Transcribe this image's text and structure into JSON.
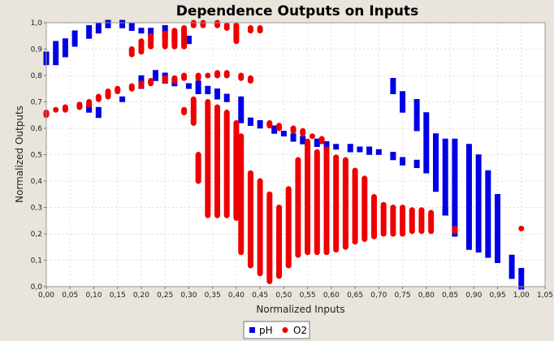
{
  "chart_data": {
    "type": "scatter",
    "title": "Dependence Outputs on Inputs",
    "xlabel": "Normalized Inputs",
    "ylabel": "Normalized Outputs",
    "xlim": [
      0,
      1.05
    ],
    "ylim": [
      0,
      1.0
    ],
    "x_ticks": [
      "0,00",
      "0,05",
      "0,10",
      "0,15",
      "0,20",
      "0,25",
      "0,30",
      "0,35",
      "0,40",
      "0,45",
      "0,50",
      "0,55",
      "0,60",
      "0,65",
      "0,70",
      "0,75",
      "0,80",
      "0,85",
      "0,90",
      "0,95",
      "1,00",
      "1,05"
    ],
    "y_ticks": [
      "0,0",
      "0,1",
      "0,2",
      "0,3",
      "0,4",
      "0,5",
      "0,6",
      "0,7",
      "0,8",
      "0,9",
      "1,0"
    ],
    "grid": true,
    "legend_position": "bottom-center",
    "series": [
      {
        "name": "pH",
        "color": "#0000e6",
        "marker": "square",
        "segments": [
          {
            "x": 0.0,
            "y0": 0.85,
            "y1": 0.88
          },
          {
            "x": 0.02,
            "y0": 0.85,
            "y1": 0.92
          },
          {
            "x": 0.04,
            "y0": 0.88,
            "y1": 0.93
          },
          {
            "x": 0.06,
            "y0": 0.92,
            "y1": 0.96
          },
          {
            "x": 0.09,
            "y0": 0.95,
            "y1": 0.98
          },
          {
            "x": 0.11,
            "y0": 0.97,
            "y1": 0.99
          },
          {
            "x": 0.13,
            "y0": 0.99,
            "y1": 1.0
          },
          {
            "x": 0.16,
            "y0": 0.99,
            "y1": 1.0
          },
          {
            "x": 0.18,
            "y0": 0.98,
            "y1": 0.99
          },
          {
            "x": 0.2,
            "y0": 0.97,
            "y1": 0.97
          },
          {
            "x": 0.22,
            "y0": 0.96,
            "y1": 0.97
          },
          {
            "x": 0.25,
            "y0": 0.95,
            "y1": 0.98
          },
          {
            "x": 0.27,
            "y0": 0.94,
            "y1": 0.95
          },
          {
            "x": 0.3,
            "y0": 0.93,
            "y1": 0.94
          },
          {
            "x": 0.09,
            "y0": 0.67,
            "y1": 0.68
          },
          {
            "x": 0.11,
            "y0": 0.65,
            "y1": 0.67
          },
          {
            "x": 0.16,
            "y0": 0.71,
            "y1": 0.71
          },
          {
            "x": 0.2,
            "y0": 0.76,
            "y1": 0.79
          },
          {
            "x": 0.23,
            "y0": 0.79,
            "y1": 0.81
          },
          {
            "x": 0.25,
            "y0": 0.78,
            "y1": 0.8
          },
          {
            "x": 0.27,
            "y0": 0.77,
            "y1": 0.78
          },
          {
            "x": 0.3,
            "y0": 0.76,
            "y1": 0.76
          },
          {
            "x": 0.32,
            "y0": 0.74,
            "y1": 0.77
          },
          {
            "x": 0.34,
            "y0": 0.74,
            "y1": 0.75
          },
          {
            "x": 0.36,
            "y0": 0.72,
            "y1": 0.74
          },
          {
            "x": 0.38,
            "y0": 0.71,
            "y1": 0.72
          },
          {
            "x": 0.41,
            "y0": 0.63,
            "y1": 0.71
          },
          {
            "x": 0.43,
            "y0": 0.62,
            "y1": 0.63
          },
          {
            "x": 0.45,
            "y0": 0.61,
            "y1": 0.62
          },
          {
            "x": 0.48,
            "y0": 0.59,
            "y1": 0.6
          },
          {
            "x": 0.5,
            "y0": 0.58,
            "y1": 0.58
          },
          {
            "x": 0.52,
            "y0": 0.56,
            "y1": 0.57
          },
          {
            "x": 0.54,
            "y0": 0.55,
            "y1": 0.56
          },
          {
            "x": 0.57,
            "y0": 0.54,
            "y1": 0.55
          },
          {
            "x": 0.59,
            "y0": 0.53,
            "y1": 0.54
          },
          {
            "x": 0.61,
            "y0": 0.53,
            "y1": 0.53
          },
          {
            "x": 0.64,
            "y0": 0.52,
            "y1": 0.53
          },
          {
            "x": 0.66,
            "y0": 0.52,
            "y1": 0.52
          },
          {
            "x": 0.68,
            "y0": 0.51,
            "y1": 0.52
          },
          {
            "x": 0.7,
            "y0": 0.51,
            "y1": 0.51
          },
          {
            "x": 0.73,
            "y0": 0.49,
            "y1": 0.5
          },
          {
            "x": 0.75,
            "y0": 0.47,
            "y1": 0.48
          },
          {
            "x": 0.78,
            "y0": 0.46,
            "y1": 0.47
          },
          {
            "x": 0.73,
            "y0": 0.74,
            "y1": 0.78
          },
          {
            "x": 0.75,
            "y0": 0.67,
            "y1": 0.73
          },
          {
            "x": 0.78,
            "y0": 0.6,
            "y1": 0.7
          },
          {
            "x": 0.8,
            "y0": 0.44,
            "y1": 0.65
          },
          {
            "x": 0.82,
            "y0": 0.37,
            "y1": 0.57
          },
          {
            "x": 0.84,
            "y0": 0.28,
            "y1": 0.55
          },
          {
            "x": 0.84,
            "y0": 0.28,
            "y1": 0.29
          },
          {
            "x": 0.86,
            "y0": 0.2,
            "y1": 0.55
          },
          {
            "x": 0.89,
            "y0": 0.15,
            "y1": 0.53
          },
          {
            "x": 0.91,
            "y0": 0.14,
            "y1": 0.49
          },
          {
            "x": 0.93,
            "y0": 0.12,
            "y1": 0.43
          },
          {
            "x": 0.95,
            "y0": 0.1,
            "y1": 0.34
          },
          {
            "x": 0.98,
            "y0": 0.04,
            "y1": 0.11
          },
          {
            "x": 1.0,
            "y0": 0.0,
            "y1": 0.06
          }
        ]
      },
      {
        "name": "O2",
        "color": "#ee0000",
        "marker": "circle",
        "segments": [
          {
            "x": 0.0,
            "y0": 0.65,
            "y1": 0.66
          },
          {
            "x": 0.02,
            "y0": 0.67,
            "y1": 0.67
          },
          {
            "x": 0.04,
            "y0": 0.67,
            "y1": 0.68
          },
          {
            "x": 0.07,
            "y0": 0.68,
            "y1": 0.69
          },
          {
            "x": 0.09,
            "y0": 0.69,
            "y1": 0.7
          },
          {
            "x": 0.11,
            "y0": 0.71,
            "y1": 0.72
          },
          {
            "x": 0.13,
            "y0": 0.72,
            "y1": 0.74
          },
          {
            "x": 0.15,
            "y0": 0.74,
            "y1": 0.75
          },
          {
            "x": 0.18,
            "y0": 0.75,
            "y1": 0.76
          },
          {
            "x": 0.2,
            "y0": 0.76,
            "y1": 0.77
          },
          {
            "x": 0.22,
            "y0": 0.77,
            "y1": 0.78
          },
          {
            "x": 0.25,
            "y0": 0.78,
            "y1": 0.79
          },
          {
            "x": 0.27,
            "y0": 0.78,
            "y1": 0.79
          },
          {
            "x": 0.29,
            "y0": 0.79,
            "y1": 0.8
          },
          {
            "x": 0.32,
            "y0": 0.79,
            "y1": 0.8
          },
          {
            "x": 0.34,
            "y0": 0.8,
            "y1": 0.8
          },
          {
            "x": 0.36,
            "y0": 0.8,
            "y1": 0.81
          },
          {
            "x": 0.38,
            "y0": 0.8,
            "y1": 0.81
          },
          {
            "x": 0.41,
            "y0": 0.79,
            "y1": 0.8
          },
          {
            "x": 0.43,
            "y0": 0.78,
            "y1": 0.79
          },
          {
            "x": 0.18,
            "y0": 0.88,
            "y1": 0.9
          },
          {
            "x": 0.2,
            "y0": 0.89,
            "y1": 0.93
          },
          {
            "x": 0.22,
            "y0": 0.91,
            "y1": 0.95
          },
          {
            "x": 0.25,
            "y0": 0.91,
            "y1": 0.96
          },
          {
            "x": 0.27,
            "y0": 0.91,
            "y1": 0.97
          },
          {
            "x": 0.29,
            "y0": 0.91,
            "y1": 0.98
          },
          {
            "x": 0.31,
            "y0": 0.99,
            "y1": 1.0
          },
          {
            "x": 0.33,
            "y0": 0.99,
            "y1": 1.0
          },
          {
            "x": 0.36,
            "y0": 0.99,
            "y1": 1.0
          },
          {
            "x": 0.38,
            "y0": 0.98,
            "y1": 0.99
          },
          {
            "x": 0.4,
            "y0": 0.93,
            "y1": 0.99
          },
          {
            "x": 0.43,
            "y0": 0.97,
            "y1": 0.98
          },
          {
            "x": 0.45,
            "y0": 0.97,
            "y1": 0.98
          },
          {
            "x": 0.29,
            "y0": 0.66,
            "y1": 0.67
          },
          {
            "x": 0.31,
            "y0": 0.62,
            "y1": 0.71
          },
          {
            "x": 0.32,
            "y0": 0.4,
            "y1": 0.5
          },
          {
            "x": 0.34,
            "y0": 0.27,
            "y1": 0.7
          },
          {
            "x": 0.36,
            "y0": 0.27,
            "y1": 0.68
          },
          {
            "x": 0.38,
            "y0": 0.27,
            "y1": 0.66
          },
          {
            "x": 0.4,
            "y0": 0.26,
            "y1": 0.62
          },
          {
            "x": 0.41,
            "y0": 0.13,
            "y1": 0.57
          },
          {
            "x": 0.43,
            "y0": 0.08,
            "y1": 0.43
          },
          {
            "x": 0.45,
            "y0": 0.05,
            "y1": 0.4
          },
          {
            "x": 0.47,
            "y0": 0.02,
            "y1": 0.35
          },
          {
            "x": 0.49,
            "y0": 0.04,
            "y1": 0.3
          },
          {
            "x": 0.51,
            "y0": 0.08,
            "y1": 0.37
          },
          {
            "x": 0.53,
            "y0": 0.12,
            "y1": 0.48
          },
          {
            "x": 0.55,
            "y0": 0.13,
            "y1": 0.55
          },
          {
            "x": 0.57,
            "y0": 0.13,
            "y1": 0.51
          },
          {
            "x": 0.59,
            "y0": 0.13,
            "y1": 0.52
          },
          {
            "x": 0.61,
            "y0": 0.14,
            "y1": 0.49
          },
          {
            "x": 0.63,
            "y0": 0.15,
            "y1": 0.48
          },
          {
            "x": 0.65,
            "y0": 0.17,
            "y1": 0.44
          },
          {
            "x": 0.67,
            "y0": 0.18,
            "y1": 0.41
          },
          {
            "x": 0.69,
            "y0": 0.19,
            "y1": 0.34
          },
          {
            "x": 0.71,
            "y0": 0.2,
            "y1": 0.31
          },
          {
            "x": 0.73,
            "y0": 0.2,
            "y1": 0.3
          },
          {
            "x": 0.75,
            "y0": 0.2,
            "y1": 0.3
          },
          {
            "x": 0.77,
            "y0": 0.21,
            "y1": 0.29
          },
          {
            "x": 0.79,
            "y0": 0.21,
            "y1": 0.29
          },
          {
            "x": 0.81,
            "y0": 0.21,
            "y1": 0.28
          },
          {
            "x": 0.86,
            "y0": 0.21,
            "y1": 0.22
          },
          {
            "x": 1.0,
            "y0": 0.22,
            "y1": 0.22
          },
          {
            "x": 0.47,
            "y0": 0.61,
            "y1": 0.62
          },
          {
            "x": 0.49,
            "y0": 0.6,
            "y1": 0.61
          },
          {
            "x": 0.52,
            "y0": 0.59,
            "y1": 0.6
          },
          {
            "x": 0.54,
            "y0": 0.58,
            "y1": 0.59
          },
          {
            "x": 0.56,
            "y0": 0.57,
            "y1": 0.57
          },
          {
            "x": 0.58,
            "y0": 0.55,
            "y1": 0.56
          }
        ]
      }
    ]
  }
}
